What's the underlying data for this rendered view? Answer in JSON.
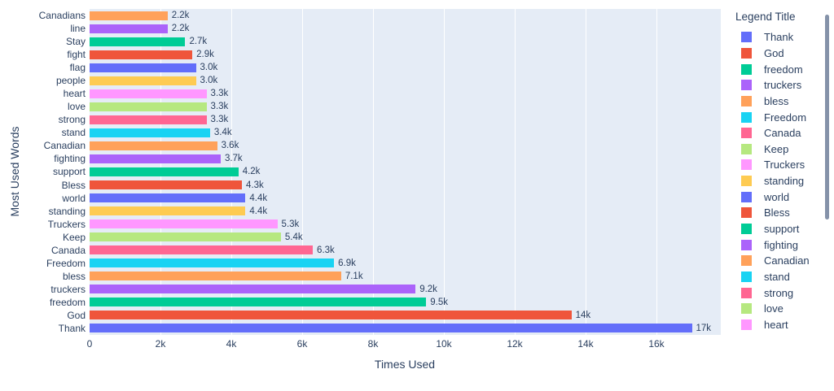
{
  "chart_data": {
    "type": "bar",
    "orientation": "horizontal",
    "xlabel": "Times Used",
    "ylabel": "Most Used Words",
    "legend_title": "Legend Title",
    "plot_bgcolor": "#E5ECF6",
    "gridcolor": "#ffffff",
    "text_color": "#2a3f5f",
    "xlim": [
      0,
      17800
    ],
    "x_ticks": [
      {
        "label": "0",
        "value": 0
      },
      {
        "label": "2k",
        "value": 2000
      },
      {
        "label": "4k",
        "value": 4000
      },
      {
        "label": "6k",
        "value": 6000
      },
      {
        "label": "8k",
        "value": 8000
      },
      {
        "label": "10k",
        "value": 10000
      },
      {
        "label": "12k",
        "value": 12000
      },
      {
        "label": "14k",
        "value": 14000
      },
      {
        "label": "16k",
        "value": 16000
      }
    ],
    "bars": [
      {
        "category": "Canadians",
        "value": 2200,
        "value_label": "2.2k",
        "color": "#FFA15A"
      },
      {
        "category": "line",
        "value": 2200,
        "value_label": "2.2k",
        "color": "#AB63FA"
      },
      {
        "category": "Stay",
        "value": 2700,
        "value_label": "2.7k",
        "color": "#00CC96"
      },
      {
        "category": "fight",
        "value": 2900,
        "value_label": "2.9k",
        "color": "#EF553B"
      },
      {
        "category": "flag",
        "value": 3000,
        "value_label": "3.0k",
        "color": "#636EFA"
      },
      {
        "category": "people",
        "value": 3000,
        "value_label": "3.0k",
        "color": "#FECB52"
      },
      {
        "category": "heart",
        "value": 3300,
        "value_label": "3.3k",
        "color": "#FF97FF"
      },
      {
        "category": "love",
        "value": 3300,
        "value_label": "3.3k",
        "color": "#B6E880"
      },
      {
        "category": "strong",
        "value": 3300,
        "value_label": "3.3k",
        "color": "#FF6692"
      },
      {
        "category": "stand",
        "value": 3400,
        "value_label": "3.4k",
        "color": "#19D3F3"
      },
      {
        "category": "Canadian",
        "value": 3600,
        "value_label": "3.6k",
        "color": "#FFA15A"
      },
      {
        "category": "fighting",
        "value": 3700,
        "value_label": "3.7k",
        "color": "#AB63FA"
      },
      {
        "category": "support",
        "value": 4200,
        "value_label": "4.2k",
        "color": "#00CC96"
      },
      {
        "category": "Bless",
        "value": 4300,
        "value_label": "4.3k",
        "color": "#EF553B"
      },
      {
        "category": "world",
        "value": 4400,
        "value_label": "4.4k",
        "color": "#636EFA"
      },
      {
        "category": "standing",
        "value": 4400,
        "value_label": "4.4k",
        "color": "#FECB52"
      },
      {
        "category": "Truckers",
        "value": 5300,
        "value_label": "5.3k",
        "color": "#FF97FF"
      },
      {
        "category": "Keep",
        "value": 5400,
        "value_label": "5.4k",
        "color": "#B6E880"
      },
      {
        "category": "Canada",
        "value": 6300,
        "value_label": "6.3k",
        "color": "#FF6692"
      },
      {
        "category": "Freedom",
        "value": 6900,
        "value_label": "6.9k",
        "color": "#19D3F3"
      },
      {
        "category": "bless",
        "value": 7100,
        "value_label": "7.1k",
        "color": "#FFA15A"
      },
      {
        "category": "truckers",
        "value": 9200,
        "value_label": "9.2k",
        "color": "#AB63FA"
      },
      {
        "category": "freedom",
        "value": 9500,
        "value_label": "9.5k",
        "color": "#00CC96"
      },
      {
        "category": "God",
        "value": 13600,
        "value_label": "14k",
        "color": "#EF553B"
      },
      {
        "category": "Thank",
        "value": 17000,
        "value_label": "17k",
        "color": "#636EFA"
      }
    ],
    "legend_items": [
      {
        "label": "Thank",
        "color": "#636EFA"
      },
      {
        "label": "God",
        "color": "#EF553B"
      },
      {
        "label": "freedom",
        "color": "#00CC96"
      },
      {
        "label": "truckers",
        "color": "#AB63FA"
      },
      {
        "label": "bless",
        "color": "#FFA15A"
      },
      {
        "label": "Freedom",
        "color": "#19D3F3"
      },
      {
        "label": "Canada",
        "color": "#FF6692"
      },
      {
        "label": "Keep",
        "color": "#B6E880"
      },
      {
        "label": "Truckers",
        "color": "#FF97FF"
      },
      {
        "label": "standing",
        "color": "#FECB52"
      },
      {
        "label": "world",
        "color": "#636EFA"
      },
      {
        "label": "Bless",
        "color": "#EF553B"
      },
      {
        "label": "support",
        "color": "#00CC96"
      },
      {
        "label": "fighting",
        "color": "#AB63FA"
      },
      {
        "label": "Canadian",
        "color": "#FFA15A"
      },
      {
        "label": "stand",
        "color": "#19D3F3"
      },
      {
        "label": "strong",
        "color": "#FF6692"
      },
      {
        "label": "love",
        "color": "#B6E880"
      },
      {
        "label": "heart",
        "color": "#FF97FF"
      }
    ],
    "legend_scrollable": true
  }
}
